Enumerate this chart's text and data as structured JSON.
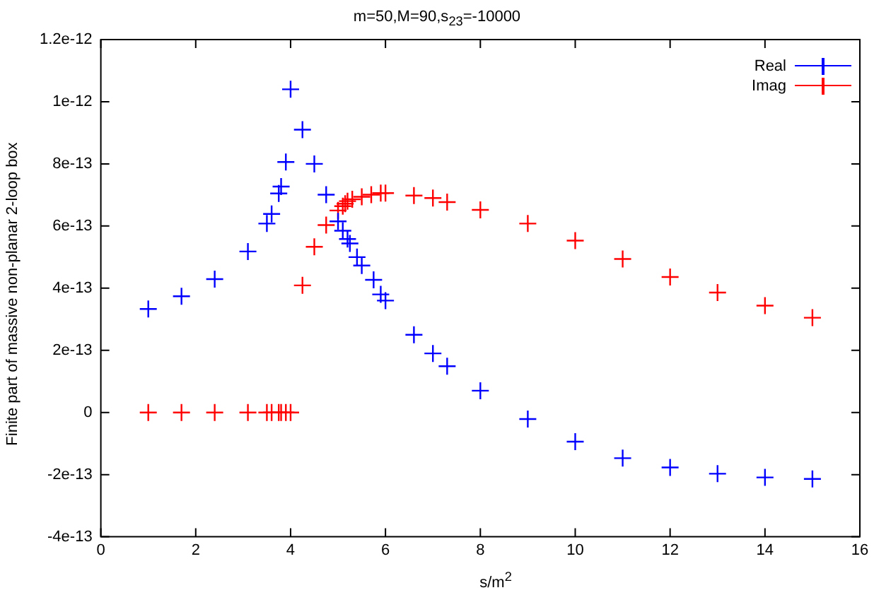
{
  "chart_data": {
    "type": "scatter",
    "title": "m=50,M=90,s$_{23}$=-10000",
    "xlabel": "s/m$^{2}$",
    "ylabel": "Finite part of massive non-planar 2-loop box",
    "series": [
      {
        "name": "Real",
        "color": "#0000ff",
        "x": [
          1,
          1.7,
          2.4,
          3.1,
          3.5,
          3.6,
          3.75,
          3.8,
          3.9,
          4.0,
          4.25,
          4.5,
          4.75,
          5.0,
          5.1,
          5.2,
          5.25,
          5.4,
          5.5,
          5.75,
          5.9,
          6.0,
          6.6,
          7.0,
          7.3,
          8,
          9,
          10,
          11,
          12,
          13,
          14,
          15
        ],
        "values": [
          3.33e-13,
          3.74e-13,
          4.29e-13,
          5.18e-13,
          6.08e-13,
          6.39e-13,
          7.05e-13,
          7.27e-13,
          8.06e-13,
          1.04e-12,
          9.1e-13,
          8e-13,
          7.01e-13,
          6.15e-13,
          5.85e-13,
          5.58e-13,
          5.44e-13,
          5e-13,
          4.73e-13,
          4.27e-13,
          3.8e-13,
          3.6e-13,
          2.5e-13,
          1.9e-13,
          1.49e-13,
          7e-14,
          -2.1e-14,
          -9.4e-14,
          -1.47e-13,
          -1.77e-13,
          -1.97e-13,
          -2.09e-13,
          -2.14e-13
        ]
      },
      {
        "name": "Imag",
        "color": "#ff0000",
        "x": [
          1,
          1.7,
          2.4,
          3.1,
          3.5,
          3.6,
          3.75,
          3.8,
          3.9,
          4.0,
          4.25,
          4.5,
          4.75,
          5.0,
          5.1,
          5.15,
          5.2,
          5.3,
          5.5,
          5.7,
          5.9,
          6.0,
          6.6,
          7.0,
          7.3,
          8,
          9,
          10,
          11,
          12,
          13,
          14,
          15
        ],
        "values": [
          0,
          0,
          0,
          0,
          0,
          0,
          0,
          0,
          0,
          0,
          4.09e-13,
          5.33e-13,
          6.03e-13,
          6.5e-13,
          6.64e-13,
          6.72e-13,
          6.8e-13,
          6.86e-13,
          6.94e-13,
          7.01e-13,
          7.06e-13,
          7.06e-13,
          6.98e-13,
          6.9e-13,
          6.77e-13,
          6.52e-13,
          6.08e-13,
          5.53e-13,
          4.94e-13,
          4.36e-13,
          3.86e-13,
          3.44e-13,
          3.05e-13
        ]
      }
    ],
    "xlim": [
      0,
      16
    ],
    "xticks": [
      0,
      2,
      4,
      6,
      8,
      10,
      12,
      14,
      16
    ],
    "ylim": [
      -4e-13,
      1.2e-12
    ],
    "yticks": [
      {
        "value": -4e-13,
        "label": "-4e-13"
      },
      {
        "value": -2e-13,
        "label": "-2e-13"
      },
      {
        "value": 0,
        "label": "0"
      },
      {
        "value": 2e-13,
        "label": "2e-13"
      },
      {
        "value": 4e-13,
        "label": "4e-13"
      },
      {
        "value": 6e-13,
        "label": "6e-13"
      },
      {
        "value": 8e-13,
        "label": "8e-13"
      },
      {
        "value": 1e-12,
        "label": "1e-12"
      },
      {
        "value": 1.2e-12,
        "label": "1.2e-12"
      }
    ],
    "grid": false,
    "legend": "top right",
    "marker": "cross"
  }
}
